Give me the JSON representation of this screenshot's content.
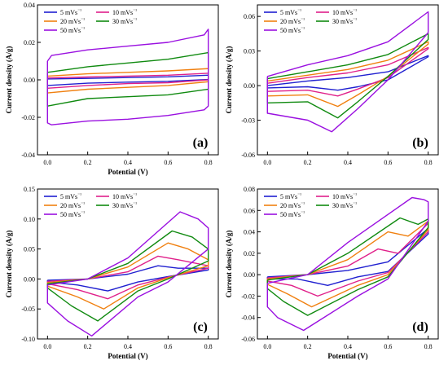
{
  "figure": {
    "panels": [
      "(a)",
      "(b)",
      "(c)",
      "(d)"
    ]
  },
  "chart_data": [
    {
      "id": "a",
      "type": "line",
      "panel_label": "(a)",
      "xlabel": "Potential (V)",
      "ylabel": "Current density (A/g)",
      "xlim": [
        -0.05,
        0.85
      ],
      "ylim": [
        -0.04,
        0.04
      ],
      "xticks": [
        "0.0",
        "0.2",
        "0.4",
        "0.6",
        "0.8"
      ],
      "yticks": [
        "-0.04",
        "-0.02",
        "0.00",
        "0.02",
        "0.04"
      ],
      "ytick_values": [
        -0.04,
        -0.02,
        0.0,
        0.02,
        0.04
      ],
      "legend_position": "top-left",
      "grid": false,
      "series": [
        {
          "name": "5 mVs⁻¹",
          "color": "#2020d0",
          "x": [
            0.0,
            0.2,
            0.4,
            0.6,
            0.8,
            0.8,
            0.6,
            0.4,
            0.2,
            0.0,
            0.0
          ],
          "y": [
            0.0005,
            0.0008,
            0.0012,
            0.0016,
            0.0025,
            0.0002,
            -0.0008,
            -0.0012,
            -0.0018,
            -0.003,
            0.0005
          ]
        },
        {
          "name": "10 mVs⁻¹",
          "color": "#e0208a",
          "x": [
            0.0,
            0.2,
            0.4,
            0.6,
            0.8,
            0.8,
            0.6,
            0.4,
            0.2,
            0.0,
            0.0
          ],
          "y": [
            0.001,
            0.0015,
            0.002,
            0.0025,
            0.0035,
            0.0,
            -0.0015,
            -0.002,
            -0.003,
            -0.0045,
            0.001
          ]
        },
        {
          "name": "20 mVs⁻¹",
          "color": "#f08010",
          "x": [
            0.0,
            0.2,
            0.4,
            0.6,
            0.8,
            0.8,
            0.6,
            0.4,
            0.2,
            0.0,
            0.0
          ],
          "y": [
            0.002,
            0.0032,
            0.004,
            0.0048,
            0.006,
            -0.001,
            -0.003,
            -0.004,
            -0.005,
            -0.007,
            0.002
          ]
        },
        {
          "name": "30 mVs⁻¹",
          "color": "#108a10",
          "x": [
            0.0,
            0.2,
            0.4,
            0.6,
            0.8,
            0.8,
            0.6,
            0.4,
            0.2,
            0.0,
            0.0
          ],
          "y": [
            0.004,
            0.007,
            0.009,
            0.011,
            0.0145,
            -0.005,
            -0.008,
            -0.009,
            -0.01,
            -0.014,
            0.004
          ]
        },
        {
          "name": "50 mVs⁻¹",
          "color": "#9a10e0",
          "x": [
            0.0,
            0.02,
            0.2,
            0.4,
            0.6,
            0.78,
            0.8,
            0.8,
            0.78,
            0.6,
            0.4,
            0.2,
            0.02,
            0.0,
            0.0
          ],
          "y": [
            0.01,
            0.013,
            0.016,
            0.018,
            0.02,
            0.024,
            0.027,
            -0.014,
            -0.016,
            -0.019,
            -0.021,
            -0.022,
            -0.024,
            -0.023,
            0.01
          ]
        }
      ]
    },
    {
      "id": "b",
      "type": "line",
      "panel_label": "(b)",
      "xlabel": "",
      "ylabel": "Current density (A/g)",
      "xlim": [
        -0.05,
        0.85
      ],
      "ylim": [
        -0.06,
        0.07
      ],
      "xticks": [
        "0.0",
        "0.2",
        "0.4",
        "0.6",
        "0.8"
      ],
      "yticks": [
        "-0.06",
        "-0.03",
        "0.00",
        "0.03",
        "0.06"
      ],
      "ytick_values": [
        -0.06,
        -0.03,
        0.0,
        0.03,
        0.06
      ],
      "legend_position": "top-left",
      "grid": false,
      "series": [
        {
          "name": "5 mVs⁻¹",
          "color": "#2020d0",
          "x": [
            0.0,
            0.2,
            0.4,
            0.6,
            0.8,
            0.8,
            0.6,
            0.45,
            0.35,
            0.2,
            0.0,
            0.0
          ],
          "y": [
            0.0,
            0.004,
            0.007,
            0.012,
            0.026,
            0.025,
            0.005,
            -0.001,
            -0.004,
            -0.001,
            -0.002,
            0.0
          ]
        },
        {
          "name": "10 mVs⁻¹",
          "color": "#e0208a",
          "x": [
            0.0,
            0.2,
            0.4,
            0.6,
            0.8,
            0.8,
            0.6,
            0.45,
            0.35,
            0.2,
            0.0,
            0.0
          ],
          "y": [
            0.002,
            0.007,
            0.011,
            0.018,
            0.033,
            0.032,
            0.007,
            -0.003,
            -0.009,
            -0.004,
            -0.005,
            0.002
          ]
        },
        {
          "name": "20 mVs⁻¹",
          "color": "#f08010",
          "x": [
            0.0,
            0.2,
            0.4,
            0.6,
            0.8,
            0.8,
            0.6,
            0.45,
            0.35,
            0.2,
            0.0,
            0.0
          ],
          "y": [
            0.004,
            0.009,
            0.014,
            0.022,
            0.038,
            0.036,
            0.008,
            -0.008,
            -0.018,
            -0.008,
            -0.009,
            0.004
          ]
        },
        {
          "name": "30 mVs⁻¹",
          "color": "#108a10",
          "x": [
            0.0,
            0.2,
            0.4,
            0.6,
            0.8,
            0.8,
            0.6,
            0.45,
            0.35,
            0.2,
            0.0,
            0.0
          ],
          "y": [
            0.006,
            0.012,
            0.018,
            0.027,
            0.045,
            0.04,
            0.008,
            -0.014,
            -0.028,
            -0.014,
            -0.015,
            0.006
          ]
        },
        {
          "name": "50 mVs⁻¹",
          "color": "#9a10e0",
          "x": [
            0.0,
            0.2,
            0.4,
            0.6,
            0.8,
            0.8,
            0.6,
            0.45,
            0.32,
            0.2,
            0.0,
            0.0
          ],
          "y": [
            0.008,
            0.018,
            0.026,
            0.038,
            0.064,
            0.046,
            0.005,
            -0.02,
            -0.04,
            -0.03,
            -0.024,
            0.008
          ]
        }
      ]
    },
    {
      "id": "c",
      "type": "line",
      "panel_label": "(c)",
      "xlabel": "Potential (V)",
      "ylabel": "Current density (A/g)",
      "xlim": [
        -0.05,
        0.85
      ],
      "ylim": [
        -0.1,
        0.15
      ],
      "xticks": [
        "0.0",
        "0.2",
        "0.4",
        "0.6",
        "0.8"
      ],
      "yticks": [
        "-0.10",
        "-0.05",
        "0.00",
        "0.05",
        "0.10",
        "0.15"
      ],
      "ytick_values": [
        -0.1,
        -0.05,
        0.0,
        0.05,
        0.1,
        0.15
      ],
      "legend_position": "top-left",
      "grid": false,
      "series": [
        {
          "name": "5 mVs⁻¹",
          "color": "#2020d0",
          "x": [
            0.0,
            0.2,
            0.4,
            0.55,
            0.65,
            0.8,
            0.8,
            0.6,
            0.45,
            0.3,
            0.15,
            0.0,
            0.0
          ],
          "y": [
            -0.002,
            0.0,
            0.008,
            0.022,
            0.018,
            0.018,
            0.015,
            0.004,
            -0.005,
            -0.02,
            -0.01,
            -0.005,
            -0.002
          ]
        },
        {
          "name": "10 mVs⁻¹",
          "color": "#e0208a",
          "x": [
            0.0,
            0.2,
            0.4,
            0.55,
            0.65,
            0.8,
            0.8,
            0.6,
            0.45,
            0.3,
            0.15,
            0.0,
            0.0
          ],
          "y": [
            -0.004,
            0.0,
            0.012,
            0.038,
            0.032,
            0.022,
            0.018,
            0.003,
            -0.01,
            -0.033,
            -0.018,
            -0.008,
            -0.004
          ]
        },
        {
          "name": "20 mVs⁻¹",
          "color": "#f08010",
          "x": [
            0.0,
            0.2,
            0.4,
            0.6,
            0.7,
            0.8,
            0.8,
            0.6,
            0.45,
            0.28,
            0.15,
            0.0,
            0.0
          ],
          "y": [
            -0.006,
            0.0,
            0.02,
            0.06,
            0.05,
            0.032,
            0.022,
            0.002,
            -0.015,
            -0.05,
            -0.03,
            -0.012,
            -0.006
          ]
        },
        {
          "name": "30 mVs⁻¹",
          "color": "#108a10",
          "x": [
            0.0,
            0.2,
            0.4,
            0.62,
            0.72,
            0.8,
            0.8,
            0.6,
            0.45,
            0.25,
            0.12,
            0.0,
            0.0
          ],
          "y": [
            -0.008,
            0.0,
            0.026,
            0.08,
            0.07,
            0.05,
            0.03,
            0.0,
            -0.02,
            -0.07,
            -0.045,
            -0.015,
            -0.008
          ]
        },
        {
          "name": "50 mVs⁻¹",
          "color": "#9a10e0",
          "x": [
            0.0,
            0.2,
            0.4,
            0.66,
            0.75,
            0.8,
            0.8,
            0.6,
            0.45,
            0.22,
            0.1,
            0.0,
            0.0
          ],
          "y": [
            -0.01,
            0.0,
            0.035,
            0.112,
            0.1,
            0.085,
            0.05,
            -0.005,
            -0.03,
            -0.095,
            -0.07,
            -0.04,
            -0.01
          ]
        }
      ]
    },
    {
      "id": "d",
      "type": "line",
      "panel_label": "(d)",
      "xlabel": "Potential (V)",
      "ylabel": "Current density (A/g)",
      "xlim": [
        -0.05,
        0.85
      ],
      "ylim": [
        -0.06,
        0.08
      ],
      "xticks": [
        "0.0",
        "0.2",
        "0.4",
        "0.6",
        "0.8"
      ],
      "yticks": [
        "-0.06",
        "-0.04",
        "-0.02",
        "0.00",
        "0.02",
        "0.04",
        "0.06",
        "0.08"
      ],
      "ytick_values": [
        -0.06,
        -0.04,
        -0.02,
        0.0,
        0.02,
        0.04,
        0.06,
        0.08
      ],
      "legend_position": "top-left",
      "grid": false,
      "series": [
        {
          "name": "5 mVs⁻¹",
          "color": "#2020d0",
          "x": [
            0.0,
            0.2,
            0.4,
            0.6,
            0.8,
            0.8,
            0.6,
            0.45,
            0.3,
            0.15,
            0.0,
            0.0
          ],
          "y": [
            -0.002,
            0.0,
            0.004,
            0.012,
            0.043,
            0.038,
            0.003,
            -0.002,
            -0.01,
            -0.004,
            -0.004,
            -0.002
          ]
        },
        {
          "name": "10 mVs⁻¹",
          "color": "#e0208a",
          "x": [
            0.0,
            0.2,
            0.4,
            0.55,
            0.65,
            0.8,
            0.8,
            0.6,
            0.45,
            0.25,
            0.12,
            0.0,
            0.0
          ],
          "y": [
            -0.003,
            0.0,
            0.008,
            0.024,
            0.02,
            0.048,
            0.04,
            0.002,
            -0.006,
            -0.02,
            -0.01,
            -0.006,
            -0.003
          ]
        },
        {
          "name": "20 mVs⁻¹",
          "color": "#f08010",
          "x": [
            0.0,
            0.2,
            0.4,
            0.6,
            0.7,
            0.8,
            0.8,
            0.6,
            0.45,
            0.22,
            0.1,
            0.0,
            0.0
          ],
          "y": [
            -0.004,
            0.0,
            0.014,
            0.04,
            0.036,
            0.05,
            0.042,
            0.0,
            -0.01,
            -0.03,
            -0.018,
            -0.009,
            -0.004
          ]
        },
        {
          "name": "30 mVs⁻¹",
          "color": "#108a10",
          "x": [
            0.0,
            0.2,
            0.4,
            0.66,
            0.75,
            0.8,
            0.8,
            0.6,
            0.45,
            0.2,
            0.08,
            0.0,
            0.0
          ],
          "y": [
            -0.005,
            0.0,
            0.02,
            0.053,
            0.047,
            0.052,
            0.044,
            -0.002,
            -0.014,
            -0.038,
            -0.025,
            -0.013,
            -0.005
          ]
        },
        {
          "name": "50 mVs⁻¹",
          "color": "#9a10e0",
          "x": [
            0.0,
            0.2,
            0.4,
            0.72,
            0.78,
            0.8,
            0.8,
            0.6,
            0.45,
            0.18,
            0.05,
            0.0,
            0.0
          ],
          "y": [
            -0.008,
            0.0,
            0.03,
            0.072,
            0.07,
            0.068,
            0.05,
            -0.004,
            -0.02,
            -0.052,
            -0.04,
            -0.03,
            -0.008
          ]
        }
      ]
    }
  ]
}
